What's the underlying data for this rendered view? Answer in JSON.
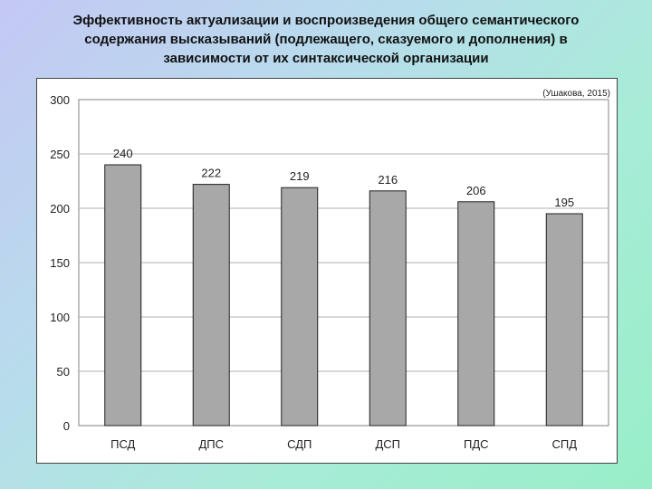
{
  "slide": {
    "title_line1": "Эффективность актуализации и воспроизведения общего семантического",
    "title_line2": "содержания высказываний (подлежащего, сказуемого и дополнения) в",
    "title_line3": "зависимости от их синтаксической организации"
  },
  "chart_data": {
    "type": "bar",
    "title": "",
    "annotation": "(Ушакова, 2015)",
    "categories": [
      "ПСД",
      "ДПС",
      "СДП",
      "ДСП",
      "ПДС",
      "СПД"
    ],
    "values": [
      240,
      222,
      219,
      216,
      206,
      195
    ],
    "value_labels": [
      "240",
      "222",
      "219",
      "216",
      "206",
      "195"
    ],
    "ylim": [
      0,
      300
    ],
    "yticks": [
      "0",
      "50",
      "100",
      "150",
      "200",
      "250",
      "300"
    ],
    "xlabel": "",
    "ylabel": "",
    "grid": true,
    "legend": "none",
    "colors": {
      "bar_fill": "#a8a8a8",
      "bar_stroke": "#202020",
      "grid": "#b0b0b0",
      "axis": "#808080",
      "text": "#222222"
    }
  }
}
